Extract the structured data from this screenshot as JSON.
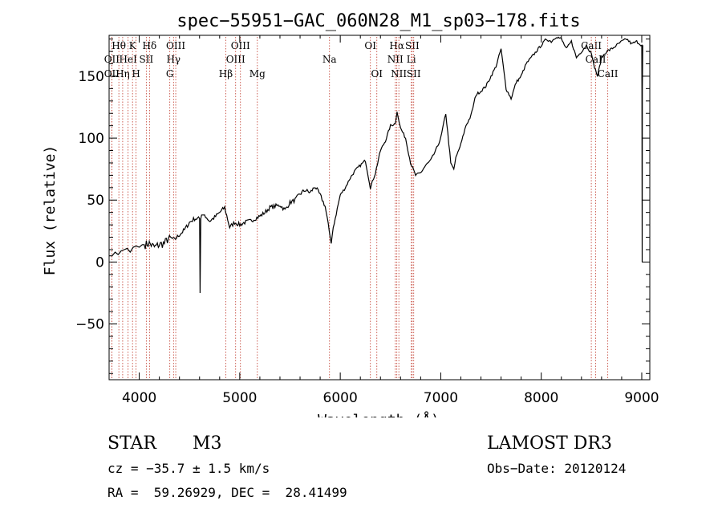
{
  "chart_data": {
    "type": "line",
    "title": "spec−55951−GAC_060N28_M1_sp03−178.fits",
    "xlabel": "Wavelength (Å)",
    "ylabel": "Flux (relative)",
    "xlim": [
      3700,
      9080
    ],
    "ylim": [
      -95,
      183
    ],
    "xticks": [
      {
        "value": 4000,
        "label": "4000"
      },
      {
        "value": 5000,
        "label": "5000"
      },
      {
        "value": 6000,
        "label": "6000"
      },
      {
        "value": 7000,
        "label": "7000"
      },
      {
        "value": 8000,
        "label": "8000"
      },
      {
        "value": 9000,
        "label": "9000"
      }
    ],
    "yticks": [
      {
        "value": -50,
        "label": "−50"
      },
      {
        "value": 0,
        "label": "0"
      },
      {
        "value": 50,
        "label": "50"
      },
      {
        "value": 100,
        "label": "100"
      },
      {
        "value": 150,
        "label": "150"
      }
    ],
    "series": [
      {
        "name": "spectrum",
        "x": [
          3700,
          3730,
          3760,
          3790,
          3820,
          3850,
          3880,
          3910,
          3940,
          3970,
          4000,
          4030,
          4060,
          4100,
          4150,
          4200,
          4250,
          4300,
          4350,
          4400,
          4450,
          4500,
          4550,
          4600,
          4605,
          4612,
          4620,
          4650,
          4700,
          4750,
          4800,
          4850,
          4900,
          4950,
          5000,
          5050,
          5100,
          5150,
          5200,
          5250,
          5300,
          5350,
          5400,
          5450,
          5500,
          5550,
          5600,
          5650,
          5700,
          5750,
          5800,
          5850,
          5890,
          5910,
          5930,
          6000,
          6050,
          6100,
          6150,
          6200,
          6250,
          6300,
          6350,
          6400,
          6450,
          6500,
          6550,
          6565,
          6600,
          6650,
          6700,
          6750,
          6800,
          6850,
          6900,
          6950,
          7000,
          7050,
          7100,
          7130,
          7150,
          7200,
          7250,
          7300,
          7350,
          7400,
          7450,
          7500,
          7550,
          7600,
          7650,
          7700,
          7750,
          7800,
          7850,
          7900,
          7950,
          8000,
          8050,
          8100,
          8150,
          8200,
          8250,
          8300,
          8350,
          8400,
          8450,
          8500,
          8520,
          8560,
          8600,
          8650,
          8700,
          8750,
          8800,
          8850,
          8900,
          8950,
          9000,
          9002,
          9004,
          9006,
          9010
        ],
        "values": [
          5,
          5,
          8,
          6,
          9,
          10,
          11,
          8,
          12,
          13,
          12,
          14,
          14,
          15,
          12,
          14,
          15,
          20,
          18,
          22,
          26,
          32,
          35,
          35,
          -25,
          35,
          38,
          38,
          33,
          36,
          40,
          44,
          28,
          32,
          30,
          32,
          33,
          35,
          37,
          40,
          44,
          45,
          46,
          42,
          48,
          50,
          55,
          58,
          56,
          61,
          54,
          45,
          25,
          15,
          28,
          54,
          60,
          68,
          74,
          78,
          82,
          60,
          72,
          90,
          98,
          110,
          112,
          122,
          108,
          100,
          80,
          70,
          72,
          78,
          82,
          90,
          100,
          120,
          80,
          75,
          84,
          95,
          110,
          118,
          135,
          138,
          142,
          150,
          158,
          172,
          140,
          132,
          145,
          150,
          160,
          165,
          170,
          175,
          180,
          178,
          182,
          180,
          172,
          178,
          165,
          170,
          175,
          168,
          160,
          150,
          165,
          170,
          172,
          175,
          178,
          180,
          176,
          178,
          175,
          140,
          0,
          140,
          175
        ]
      }
    ],
    "lines": [
      {
        "label": "Hθ",
        "wavelength": 3797,
        "row": 1
      },
      {
        "label": "OII",
        "wavelength": 3727,
        "row": 2
      },
      {
        "label": "OII",
        "wavelength": 3727,
        "row": 3
      },
      {
        "label": "HeI",
        "wavelength": 3889,
        "row": 2
      },
      {
        "label": "Hη",
        "wavelength": 3835,
        "row": 3
      },
      {
        "label": "K",
        "wavelength": 3933,
        "row": 1
      },
      {
        "label": "H",
        "wavelength": 3968,
        "row": 3
      },
      {
        "label": "SII",
        "wavelength": 4070,
        "row": 2
      },
      {
        "label": "Hδ",
        "wavelength": 4102,
        "row": 1
      },
      {
        "label": "OIII",
        "wavelength": 4363,
        "row": 1
      },
      {
        "label": "Hγ",
        "wavelength": 4341,
        "row": 2
      },
      {
        "label": "G",
        "wavelength": 4304,
        "row": 3
      },
      {
        "label": "Hβ",
        "wavelength": 4861,
        "row": 3
      },
      {
        "label": "OIII",
        "wavelength": 5007,
        "row": 1
      },
      {
        "label": "OIII",
        "wavelength": 4959,
        "row": 2
      },
      {
        "label": "Mg",
        "wavelength": 5175,
        "row": 3
      },
      {
        "label": "Na",
        "wavelength": 5893,
        "row": 2
      },
      {
        "label": "OI",
        "wavelength": 6300,
        "row": 1
      },
      {
        "label": "OI",
        "wavelength": 6364,
        "row": 3
      },
      {
        "label": "Hα",
        "wavelength": 6563,
        "row": 1
      },
      {
        "label": "NII",
        "wavelength": 6548,
        "row": 2
      },
      {
        "label": "NII",
        "wavelength": 6583,
        "row": 3
      },
      {
        "label": "SII",
        "wavelength": 6716,
        "row": 1
      },
      {
        "label": "Li",
        "wavelength": 6707,
        "row": 2
      },
      {
        "label": "SII",
        "wavelength": 6731,
        "row": 3
      },
      {
        "label": "CaII",
        "wavelength": 8498,
        "row": 1
      },
      {
        "label": "CaII",
        "wavelength": 8542,
        "row": 2
      },
      {
        "label": "CaII",
        "wavelength": 8662,
        "row": 3
      }
    ]
  },
  "info": {
    "class_label": "STAR",
    "subclass_label": "M3",
    "survey": "LAMOST DR3",
    "cz": "cz = −35.7 ± 1.5 km/s",
    "obs_date": "Obs−Date: 20120124",
    "coords": "RA =  59.26929, DEC =  28.41499"
  }
}
